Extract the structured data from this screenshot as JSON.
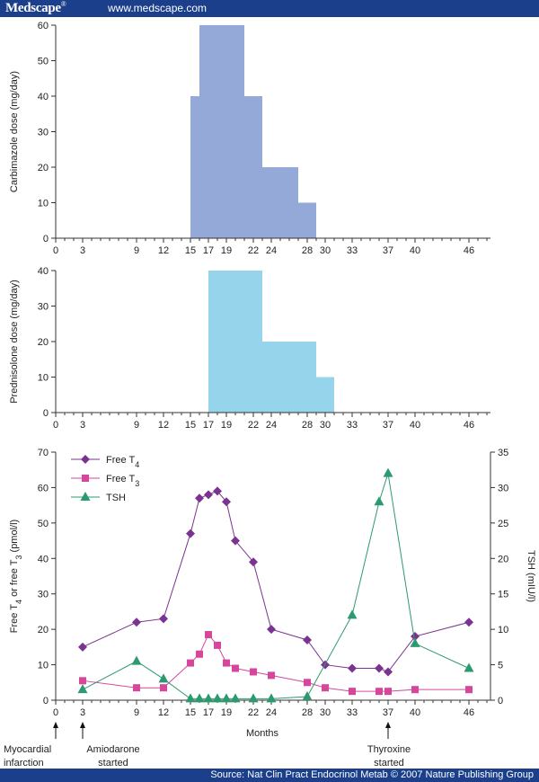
{
  "header": {
    "brand": "Medscape",
    "brand_mark": "®",
    "site": "www.medscape.com"
  },
  "footer": {
    "source": "Source: Nat Clin Pract Endocrinol Metab © 2007 Nature Publishing Group"
  },
  "xaxis": {
    "ticks": [
      0,
      3,
      9,
      12,
      15,
      17,
      19,
      22,
      24,
      28,
      30,
      33,
      37,
      40,
      46
    ],
    "max": 48,
    "label": "Months"
  },
  "annotations": [
    {
      "month": 0,
      "text": [
        "Myocardial",
        "infarction"
      ]
    },
    {
      "month": 3,
      "text": [
        "Amiodarone",
        "started"
      ]
    },
    {
      "month": 37,
      "text": [
        "Thyroxine",
        "started"
      ]
    }
  ],
  "colors": {
    "carbimazole": "#94a9d8",
    "prednisolone": "#95d4ea",
    "free_t4": "#7b3391",
    "free_t3": "#d6479c",
    "tsh": "#2c9a6e",
    "topbar": "#1b3f8b"
  },
  "chart_data": [
    {
      "type": "bar",
      "title": "",
      "xlabel": "",
      "ylabel": "Carbimazole dose (mg/day)",
      "ylim": [
        0,
        60
      ],
      "yticks": [
        0,
        10,
        20,
        30,
        40,
        50,
        60
      ],
      "steps": [
        {
          "from": 15,
          "to": 16,
          "value": 40
        },
        {
          "from": 16,
          "to": 21,
          "value": 60
        },
        {
          "from": 21,
          "to": 23,
          "value": 40
        },
        {
          "from": 23,
          "to": 27,
          "value": 20
        },
        {
          "from": 27,
          "to": 29,
          "value": 10
        }
      ]
    },
    {
      "type": "bar",
      "title": "",
      "xlabel": "",
      "ylabel": "Prednisolone dose (mg/day)",
      "ylim": [
        0,
        40
      ],
      "yticks": [
        0,
        10,
        20,
        30,
        40
      ],
      "steps": [
        {
          "from": 17,
          "to": 23,
          "value": 40
        },
        {
          "from": 23,
          "to": 29,
          "value": 20
        },
        {
          "from": 29,
          "to": 31,
          "value": 10
        }
      ]
    },
    {
      "type": "line",
      "title": "",
      "xlabel": "Months",
      "ylabel": "Free T4 or free T3 (pmol/l)",
      "ylabel_parts": [
        "Free T",
        "4",
        " or free T",
        "3",
        " (pmol/l)"
      ],
      "ylim": [
        0,
        70
      ],
      "yticks": [
        0,
        10,
        20,
        30,
        40,
        50,
        60,
        70
      ],
      "y2label": "TSH (mIU/l)",
      "y2lim": [
        0,
        35
      ],
      "y2ticks": [
        0,
        5,
        10,
        15,
        20,
        25,
        30,
        35
      ],
      "legend_position": "top-left",
      "series": [
        {
          "name": "Free T",
          "sub": "4",
          "marker": "diamond",
          "axis": "left",
          "x": [
            3,
            9,
            12,
            15,
            16,
            17,
            18,
            19,
            20,
            22,
            24,
            28,
            30,
            33,
            36,
            37,
            40,
            46
          ],
          "y": [
            15,
            22,
            23,
            47,
            57,
            58,
            59,
            56,
            45,
            39,
            20,
            17,
            10,
            9,
            9,
            8,
            18,
            22
          ]
        },
        {
          "name": "Free T",
          "sub": "3",
          "marker": "square",
          "axis": "left",
          "x": [
            3,
            9,
            12,
            15,
            16,
            17,
            18,
            19,
            20,
            22,
            24,
            28,
            30,
            33,
            36,
            37,
            40,
            46
          ],
          "y": [
            5.5,
            3.5,
            3.5,
            10.5,
            13,
            18.5,
            15.5,
            10.5,
            9,
            8,
            7,
            5,
            3.5,
            2.5,
            2.5,
            2.5,
            3,
            3
          ]
        },
        {
          "name": "TSH",
          "sub": "",
          "marker": "triangle",
          "axis": "right",
          "x": [
            3,
            9,
            12,
            15,
            16,
            17,
            18,
            19,
            20,
            22,
            24,
            28,
            33,
            36,
            37,
            40,
            46
          ],
          "y": [
            1.5,
            5.5,
            3,
            0.2,
            0.2,
            0.2,
            0.2,
            0.2,
            0.2,
            0.2,
            0.2,
            0.5,
            12,
            28,
            32,
            8,
            4.5
          ]
        }
      ]
    }
  ]
}
